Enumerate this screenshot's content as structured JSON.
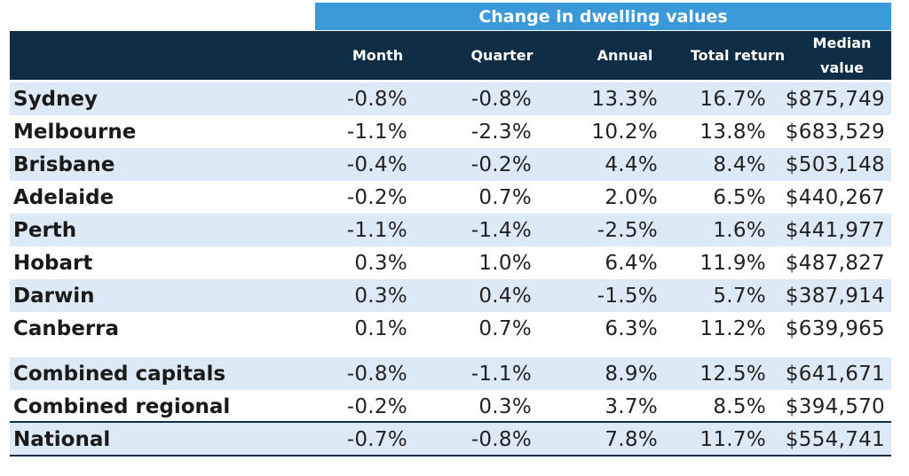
{
  "chart_data": {
    "type": "table",
    "title": "Change in dwelling values",
    "columns": [
      "",
      "Month",
      "Quarter",
      "Annual",
      "Total return",
      "Median value"
    ],
    "rows": [
      {
        "name": "Sydney",
        "month": "-0.8%",
        "quarter": "-0.8%",
        "annual": "13.3%",
        "total_return": "16.7%",
        "median": "$875,749"
      },
      {
        "name": "Melbourne",
        "month": "-1.1%",
        "quarter": "-2.3%",
        "annual": "10.2%",
        "total_return": "13.8%",
        "median": "$683,529"
      },
      {
        "name": "Brisbane",
        "month": "-0.4%",
        "quarter": "-0.2%",
        "annual": "4.4%",
        "total_return": "8.4%",
        "median": "$503,148"
      },
      {
        "name": "Adelaide",
        "month": "-0.2%",
        "quarter": "0.7%",
        "annual": "2.0%",
        "total_return": "6.5%",
        "median": "$440,267"
      },
      {
        "name": "Perth",
        "month": "-1.1%",
        "quarter": "-1.4%",
        "annual": "-2.5%",
        "total_return": "1.6%",
        "median": "$441,977"
      },
      {
        "name": "Hobart",
        "month": "0.3%",
        "quarter": "1.0%",
        "annual": "6.4%",
        "total_return": "11.9%",
        "median": "$487,827"
      },
      {
        "name": "Darwin",
        "month": "0.3%",
        "quarter": "0.4%",
        "annual": "-1.5%",
        "total_return": "5.7%",
        "median": "$387,914"
      },
      {
        "name": "Canberra",
        "month": "0.1%",
        "quarter": "0.7%",
        "annual": "6.3%",
        "total_return": "11.2%",
        "median": "$639,965"
      },
      {
        "name": "Combined capitals",
        "month": "-0.8%",
        "quarter": "-1.1%",
        "annual": "8.9%",
        "total_return": "12.5%",
        "median": "$641,671"
      },
      {
        "name": "Combined regional",
        "month": "-0.2%",
        "quarter": "0.3%",
        "annual": "3.7%",
        "total_return": "8.5%",
        "median": "$394,570"
      },
      {
        "name": "National",
        "month": "-0.7%",
        "quarter": "-0.8%",
        "annual": "7.8%",
        "total_return": "11.7%",
        "median": "$554,741"
      }
    ]
  },
  "header": {
    "month": "Month",
    "quarter": "Quarter",
    "annual": "Annual",
    "total_return": "Total return",
    "median_line1": "Median",
    "median_line2": "value"
  },
  "colors": {
    "banner": "#3a9ad9",
    "header": "#0f2d44",
    "stripe": "#dce9f6"
  }
}
